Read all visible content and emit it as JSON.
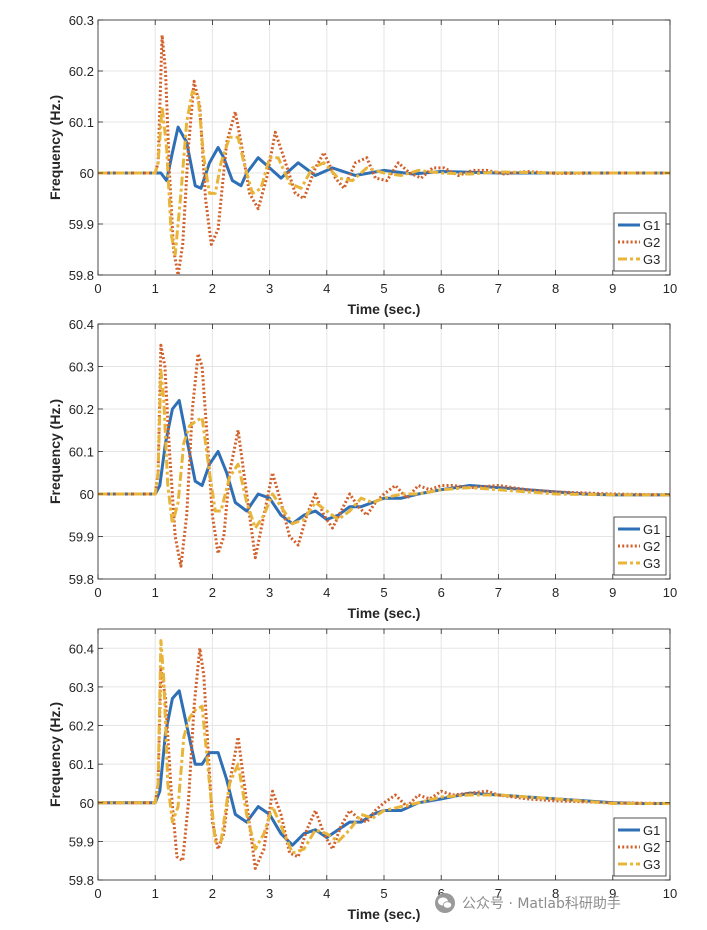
{
  "colors": {
    "G1": "#2e6fb5",
    "G2": "#d2602a",
    "G3": "#e8b53a",
    "grid": "#e5e5e5",
    "axis": "#262626"
  },
  "watermark": {
    "text": "公众号 · Matlab科研助手",
    "icon": "wechat-icon"
  },
  "chart_data": [
    {
      "type": "line",
      "xlabel": "Time (sec.)",
      "ylabel": "Frequency (Hz.)",
      "xlim": [
        0,
        10
      ],
      "ylim": [
        59.8,
        60.3
      ],
      "xticks": [
        0,
        1,
        2,
        3,
        4,
        5,
        6,
        7,
        8,
        9,
        10
      ],
      "yticks": [
        59.8,
        59.9,
        60,
        60.1,
        60.2,
        60.3
      ],
      "ytick_labels": [
        "59.8",
        "59.9",
        "60",
        "60.1",
        "60.2",
        "60.3"
      ],
      "grid": true,
      "legend": "bottom-right",
      "series": [
        {
          "name": "G1",
          "x": [
            0,
            1.0,
            1.1,
            1.2,
            1.3,
            1.4,
            1.55,
            1.7,
            1.8,
            1.95,
            2.1,
            2.2,
            2.35,
            2.5,
            2.6,
            2.8,
            3.0,
            3.2,
            3.5,
            3.8,
            4.1,
            4.5,
            5.0,
            5.5,
            6.0,
            7.0,
            8.0,
            10
          ],
          "y": [
            60,
            60,
            60.0,
            59.985,
            60.04,
            60.09,
            60.06,
            59.975,
            59.97,
            60.02,
            60.05,
            60.03,
            59.985,
            59.975,
            60.0,
            60.03,
            60.01,
            59.99,
            60.02,
            59.995,
            60.01,
            59.995,
            60.005,
            59.998,
            60.003,
            60.0,
            60.0,
            60.0
          ]
        },
        {
          "name": "G2",
          "x": [
            0,
            1.0,
            1.05,
            1.12,
            1.18,
            1.25,
            1.32,
            1.4,
            1.48,
            1.58,
            1.68,
            1.78,
            1.88,
            1.98,
            2.1,
            2.25,
            2.4,
            2.5,
            2.65,
            2.8,
            2.95,
            3.1,
            3.25,
            3.45,
            3.6,
            3.8,
            3.95,
            4.15,
            4.3,
            4.5,
            4.7,
            4.85,
            5.05,
            5.25,
            5.45,
            5.65,
            5.85,
            6.05,
            6.3,
            6.55,
            6.8,
            7.1,
            7.5,
            8.0,
            9.0,
            10
          ],
          "y": [
            60,
            60,
            60.02,
            60.27,
            60.2,
            60.0,
            59.85,
            59.8,
            59.86,
            60.05,
            60.18,
            60.13,
            59.95,
            59.86,
            59.89,
            60.06,
            60.12,
            60.06,
            59.96,
            59.93,
            59.99,
            60.08,
            60.03,
            59.96,
            59.95,
            60.01,
            60.04,
            59.99,
            59.97,
            60.02,
            60.03,
            59.99,
            59.985,
            60.02,
            60.0,
            59.99,
            60.01,
            60.01,
            59.995,
            60.005,
            60.005,
            59.998,
            60.003,
            59.999,
            60.0,
            60.0
          ]
        },
        {
          "name": "G3",
          "x": [
            0,
            1.0,
            1.05,
            1.12,
            1.2,
            1.28,
            1.35,
            1.45,
            1.55,
            1.65,
            1.75,
            1.85,
            1.95,
            2.05,
            2.15,
            2.3,
            2.45,
            2.55,
            2.7,
            2.85,
            3.0,
            3.15,
            3.35,
            3.55,
            3.75,
            3.95,
            4.2,
            4.45,
            4.7,
            5.0,
            5.3,
            5.6,
            6.0,
            6.5,
            7.0,
            8.0,
            10
          ],
          "y": [
            60,
            60,
            60.02,
            60.13,
            60.05,
            59.88,
            59.84,
            59.96,
            60.1,
            60.16,
            60.15,
            60.03,
            59.96,
            59.96,
            60.02,
            60.07,
            60.07,
            60.02,
            59.96,
            59.97,
            60.03,
            60.03,
            59.98,
            59.97,
            60.01,
            60.02,
            59.99,
            59.985,
            60.01,
            60.0,
            59.995,
            60.005,
            60.0,
            59.998,
            60.002,
            60.0,
            60.0
          ]
        }
      ]
    },
    {
      "type": "line",
      "xlabel": "Time (sec.)",
      "ylabel": "Frequency (Hz.)",
      "xlim": [
        0,
        10
      ],
      "ylim": [
        59.8,
        60.4
      ],
      "xticks": [
        0,
        1,
        2,
        3,
        4,
        5,
        6,
        7,
        8,
        9,
        10
      ],
      "yticks": [
        59.8,
        59.9,
        60,
        60.1,
        60.2,
        60.3,
        60.4
      ],
      "ytick_labels": [
        "59.8",
        "59.9",
        "60",
        "60.1",
        "60.2",
        "60.3",
        "60.4"
      ],
      "grid": true,
      "legend": "bottom-right",
      "series": [
        {
          "name": "G1",
          "x": [
            0,
            1.0,
            1.08,
            1.18,
            1.3,
            1.42,
            1.55,
            1.7,
            1.82,
            1.95,
            2.1,
            2.25,
            2.4,
            2.6,
            2.8,
            3.0,
            3.2,
            3.4,
            3.6,
            3.8,
            4.0,
            4.2,
            4.4,
            4.6,
            4.8,
            5.0,
            5.3,
            5.6,
            6.0,
            6.5,
            7.0,
            7.5,
            8.0,
            8.5,
            9.0,
            9.5,
            10
          ],
          "y": [
            60,
            60,
            60.02,
            60.12,
            60.2,
            60.22,
            60.13,
            60.03,
            60.02,
            60.07,
            60.1,
            60.05,
            59.98,
            59.96,
            60.0,
            59.99,
            59.95,
            59.93,
            59.95,
            59.96,
            59.94,
            59.95,
            59.97,
            59.97,
            59.98,
            59.99,
            59.99,
            60.0,
            60.01,
            60.02,
            60.015,
            60.01,
            60.005,
            60.0,
            59.998,
            59.998,
            59.998
          ]
        },
        {
          "name": "G2",
          "x": [
            0,
            1.0,
            1.05,
            1.1,
            1.17,
            1.25,
            1.35,
            1.45,
            1.55,
            1.65,
            1.75,
            1.82,
            1.9,
            2.0,
            2.1,
            2.2,
            2.3,
            2.45,
            2.6,
            2.75,
            2.9,
            3.05,
            3.2,
            3.35,
            3.5,
            3.65,
            3.8,
            3.95,
            4.1,
            4.25,
            4.4,
            4.55,
            4.7,
            4.85,
            5.0,
            5.2,
            5.4,
            5.6,
            5.8,
            6.0,
            6.2,
            6.5,
            7.0,
            7.5,
            8.0,
            9.0,
            10
          ],
          "y": [
            60,
            60,
            60.05,
            60.35,
            60.3,
            60.1,
            59.9,
            59.83,
            59.95,
            60.2,
            60.33,
            60.3,
            60.15,
            59.95,
            59.86,
            59.9,
            60.05,
            60.15,
            60.0,
            59.85,
            59.95,
            60.05,
            59.98,
            59.9,
            59.88,
            59.95,
            60.0,
            59.95,
            59.92,
            59.96,
            60.0,
            59.97,
            59.95,
            59.98,
            60.0,
            60.02,
            59.99,
            60.02,
            60.01,
            60.02,
            60.02,
            60.015,
            60.02,
            60.01,
            60.005,
            60.0,
            59.998
          ]
        },
        {
          "name": "G3",
          "x": [
            0,
            1.0,
            1.05,
            1.1,
            1.15,
            1.22,
            1.3,
            1.4,
            1.5,
            1.6,
            1.7,
            1.82,
            1.95,
            2.05,
            2.15,
            2.3,
            2.45,
            2.6,
            2.75,
            2.9,
            3.05,
            3.2,
            3.4,
            3.6,
            3.8,
            4.0,
            4.2,
            4.4,
            4.6,
            4.8,
            5.0,
            5.3,
            5.6,
            6.0,
            6.5,
            7.0,
            7.5,
            8.0,
            9.0,
            10
          ],
          "y": [
            60,
            60,
            60.05,
            60.29,
            60.22,
            60.02,
            59.93,
            59.98,
            60.12,
            60.16,
            60.17,
            60.18,
            60.05,
            59.96,
            59.96,
            60.04,
            60.07,
            59.98,
            59.92,
            59.95,
            60.0,
            59.97,
            59.93,
            59.94,
            59.98,
            59.96,
            59.94,
            59.96,
            59.99,
            59.98,
            59.99,
            60.0,
            60.0,
            60.01,
            60.015,
            60.01,
            60.005,
            60.0,
            59.998,
            59.998
          ]
        }
      ]
    },
    {
      "type": "line",
      "xlabel": "Time (sec.)",
      "ylabel": "Frequency (Hz.)",
      "xlim": [
        0,
        10
      ],
      "ylim": [
        59.8,
        60.45
      ],
      "xticks": [
        0,
        1,
        2,
        3,
        4,
        5,
        6,
        7,
        8,
        9,
        10
      ],
      "yticks": [
        59.8,
        59.9,
        60,
        60.1,
        60.2,
        60.3,
        60.4
      ],
      "ytick_labels": [
        "59.8",
        "59.9",
        "60",
        "60.1",
        "60.2",
        "60.3",
        "60.4"
      ],
      "grid": true,
      "legend": "bottom-right",
      "series": [
        {
          "name": "G1",
          "x": [
            0,
            1.0,
            1.08,
            1.18,
            1.3,
            1.42,
            1.55,
            1.7,
            1.82,
            1.95,
            2.1,
            2.25,
            2.4,
            2.6,
            2.8,
            3.0,
            3.2,
            3.4,
            3.6,
            3.8,
            4.0,
            4.2,
            4.4,
            4.6,
            4.8,
            5.0,
            5.3,
            5.6,
            6.0,
            6.5,
            7.0,
            7.5,
            8.0,
            8.5,
            9.0,
            9.5,
            10
          ],
          "y": [
            60,
            60,
            60.03,
            60.18,
            60.27,
            60.29,
            60.2,
            60.1,
            60.1,
            60.13,
            60.13,
            60.06,
            59.97,
            59.95,
            59.99,
            59.97,
            59.92,
            59.89,
            59.92,
            59.93,
            59.91,
            59.93,
            59.95,
            59.95,
            59.97,
            59.98,
            59.98,
            60.0,
            60.01,
            60.025,
            60.02,
            60.015,
            60.01,
            60.005,
            60.0,
            59.998,
            59.998
          ]
        },
        {
          "name": "G2",
          "x": [
            0,
            1.0,
            1.05,
            1.1,
            1.18,
            1.28,
            1.38,
            1.48,
            1.58,
            1.68,
            1.78,
            1.85,
            1.92,
            2.0,
            2.1,
            2.2,
            2.3,
            2.45,
            2.6,
            2.75,
            2.9,
            3.05,
            3.2,
            3.35,
            3.5,
            3.65,
            3.8,
            3.95,
            4.1,
            4.25,
            4.4,
            4.55,
            4.7,
            4.85,
            5.0,
            5.2,
            5.4,
            5.6,
            5.8,
            6.0,
            6.2,
            6.5,
            6.8,
            7.0,
            7.5,
            8.0,
            9.0,
            10
          ],
          "y": [
            60,
            60,
            60.05,
            60.35,
            60.27,
            60.03,
            59.86,
            59.85,
            60.0,
            60.25,
            60.4,
            60.33,
            60.15,
            59.95,
            59.88,
            59.92,
            60.05,
            60.17,
            60.0,
            59.83,
            59.88,
            60.03,
            59.97,
            59.87,
            59.86,
            59.93,
            59.98,
            59.92,
            59.88,
            59.94,
            59.98,
            59.96,
            59.95,
            59.98,
            60.0,
            60.02,
            59.99,
            60.02,
            60.01,
            60.03,
            60.02,
            60.025,
            60.03,
            60.02,
            60.01,
            60.005,
            60.0,
            59.998
          ]
        },
        {
          "name": "G3",
          "x": [
            0,
            1.0,
            1.05,
            1.1,
            1.15,
            1.22,
            1.3,
            1.4,
            1.5,
            1.6,
            1.7,
            1.82,
            1.95,
            2.05,
            2.15,
            2.3,
            2.45,
            2.6,
            2.75,
            2.9,
            3.05,
            3.2,
            3.4,
            3.6,
            3.8,
            4.0,
            4.2,
            4.4,
            4.6,
            4.8,
            5.0,
            5.3,
            5.6,
            6.0,
            6.5,
            7.0,
            7.5,
            8.0,
            9.0,
            10
          ],
          "y": [
            60,
            60,
            60.05,
            60.42,
            60.32,
            60.05,
            59.95,
            59.99,
            60.17,
            60.22,
            60.24,
            60.25,
            60.05,
            59.9,
            59.9,
            60.05,
            60.1,
            59.97,
            59.88,
            59.92,
            59.99,
            59.94,
            59.87,
            59.88,
            59.93,
            59.92,
            59.9,
            59.93,
            59.97,
            59.96,
            59.98,
            59.99,
            60.0,
            60.015,
            60.02,
            60.02,
            60.015,
            60.01,
            59.998,
            59.998
          ]
        }
      ]
    }
  ]
}
